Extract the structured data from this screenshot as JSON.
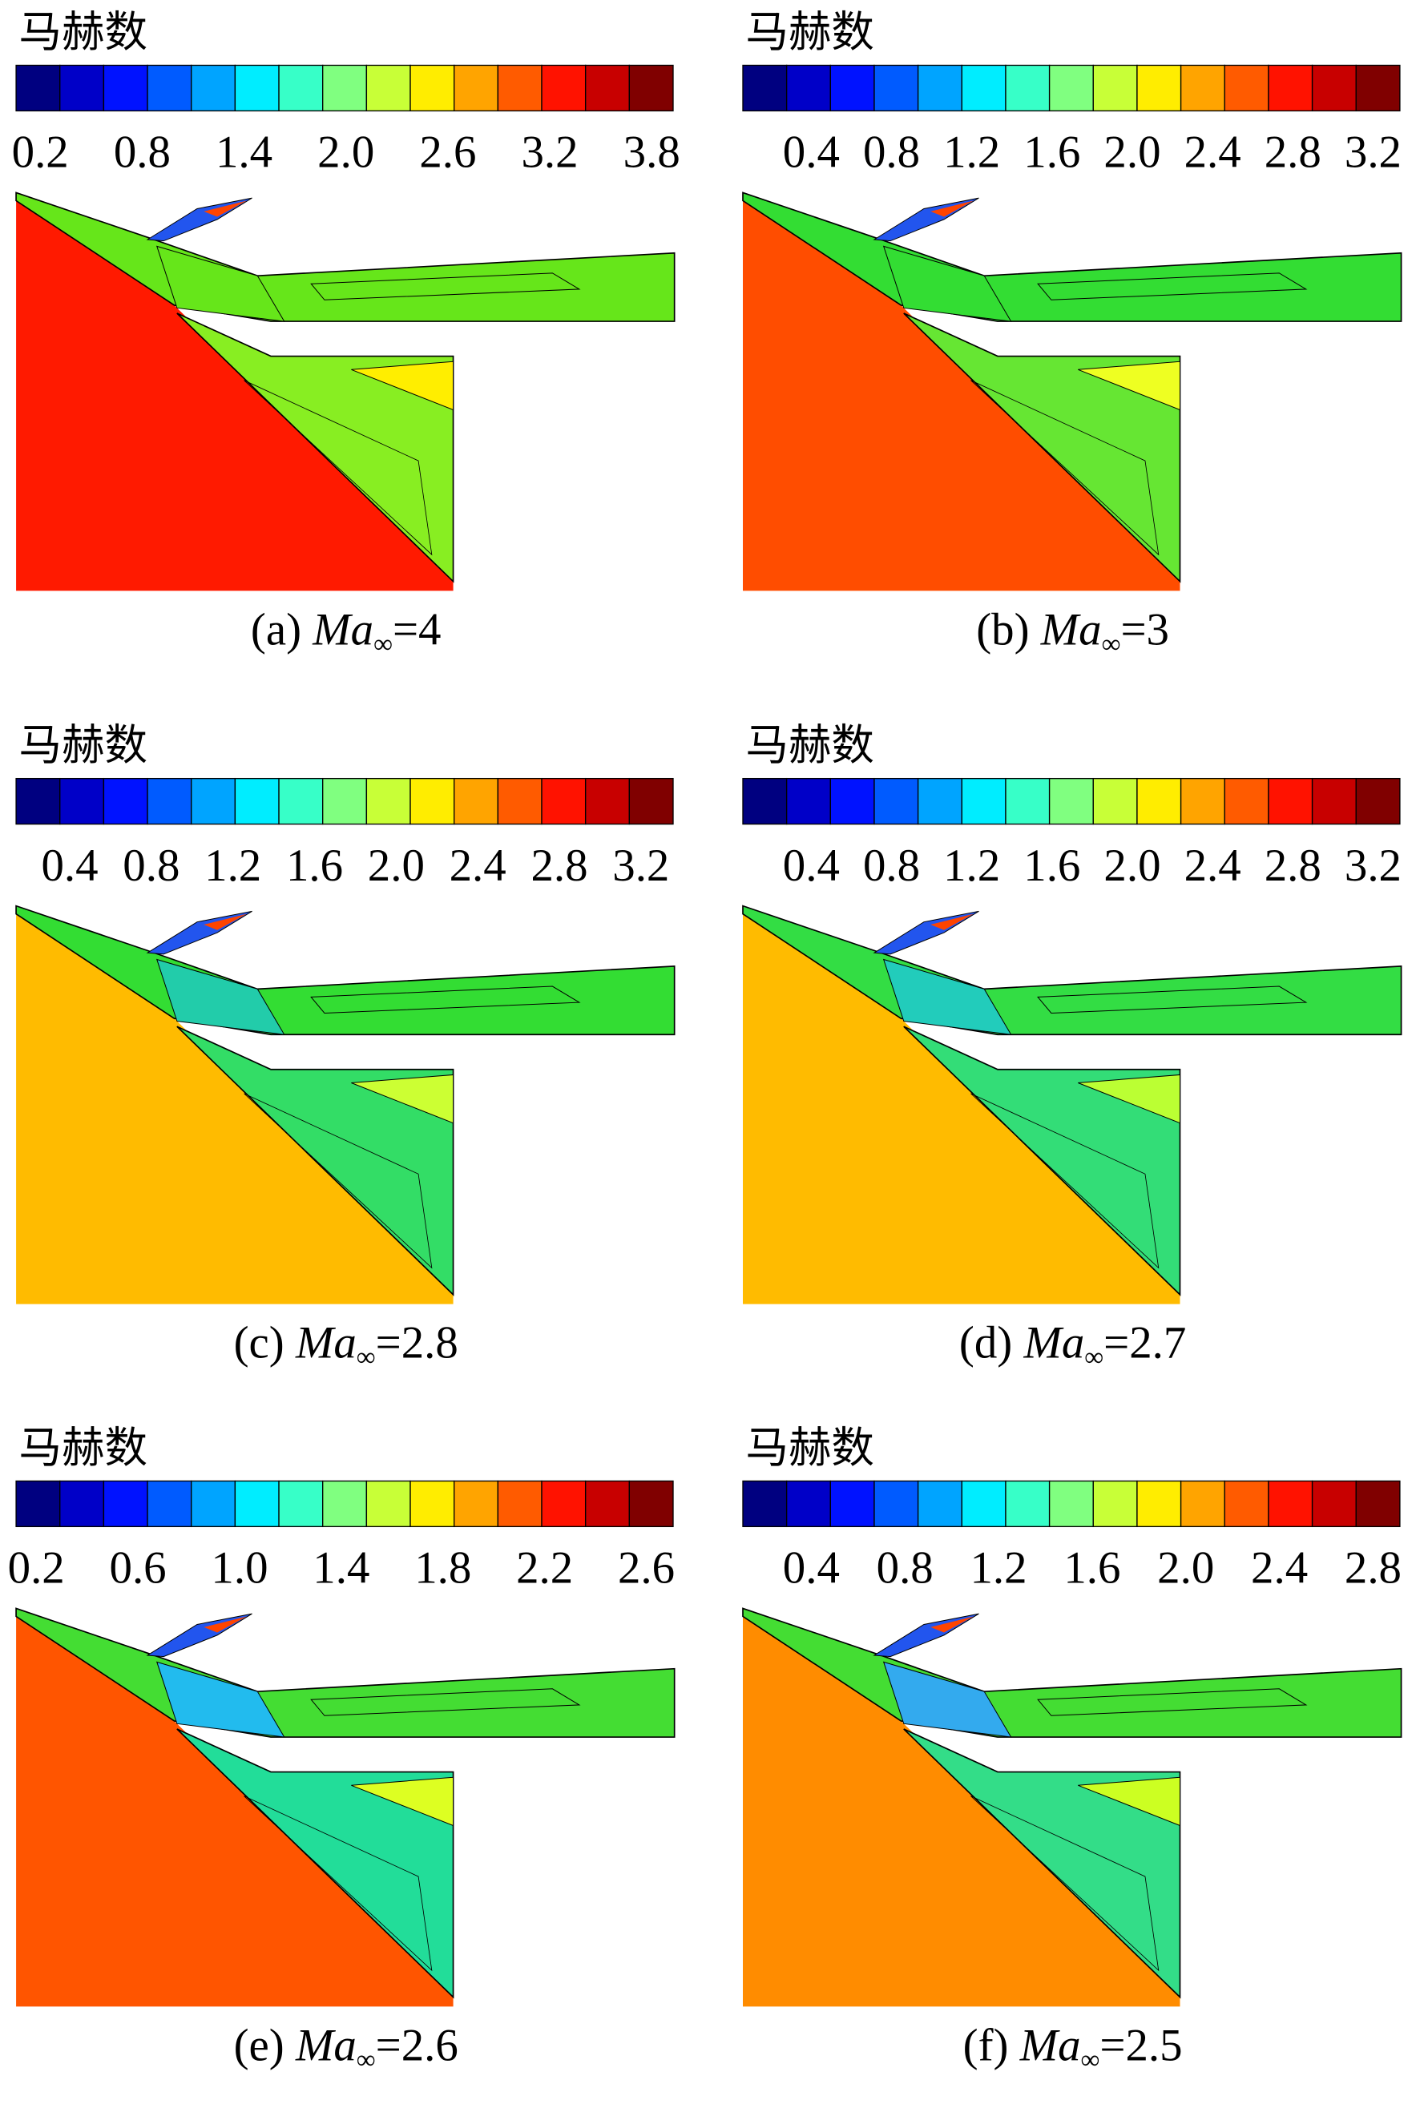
{
  "panels": [
    {
      "colorbar_title": "马赫数",
      "ticks": [
        "0.2",
        "0.8",
        "1.4",
        "2.0",
        "2.6",
        "3.2",
        "3.8"
      ],
      "caption": {
        "label": "(a) ",
        "var": "Ma",
        "sub": "∞",
        "value": "=4"
      }
    },
    {
      "colorbar_title": "马赫数",
      "ticks": [
        "0.4",
        "0.8",
        "1.2",
        "1.6",
        "2.0",
        "2.4",
        "2.8",
        "3.2"
      ],
      "caption": {
        "label": "(b) ",
        "var": "Ma",
        "sub": "∞",
        "value": "=3"
      }
    },
    {
      "colorbar_title": "马赫数",
      "ticks": [
        "0.4",
        "0.8",
        "1.2",
        "1.6",
        "2.0",
        "2.4",
        "2.8",
        "3.2"
      ],
      "caption": {
        "label": "(c) ",
        "var": "Ma",
        "sub": "∞",
        "value": "=2.8"
      }
    },
    {
      "colorbar_title": "马赫数",
      "ticks": [
        "0.4",
        "0.8",
        "1.2",
        "1.6",
        "2.0",
        "2.4",
        "2.8",
        "3.2"
      ],
      "caption": {
        "label": "(d) ",
        "var": "Ma",
        "sub": "∞",
        "value": "=2.7"
      }
    },
    {
      "colorbar_title": "马赫数",
      "ticks": [
        "0.2",
        "0.6",
        "1.0",
        "1.4",
        "1.8",
        "2.2",
        "2.6"
      ],
      "caption": {
        "label": "(e) ",
        "var": "Ma",
        "sub": "∞",
        "value": "=2.6"
      }
    },
    {
      "colorbar_title": "马赫数",
      "ticks": [
        "0.4",
        "0.8",
        "1.2",
        "1.6",
        "2.0",
        "2.4",
        "2.8"
      ],
      "caption": {
        "label": "(f) ",
        "var": "Ma",
        "sub": "∞",
        "value": "=2.5"
      }
    }
  ]
}
